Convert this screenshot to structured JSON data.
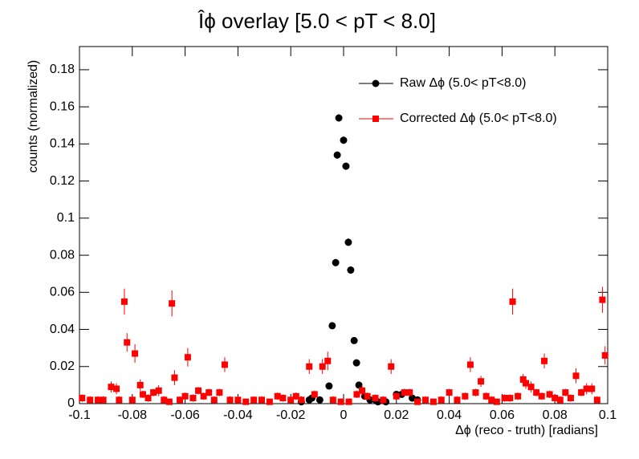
{
  "chart_data": {
    "type": "scatter",
    "title": "Îϕ overlay [5.0 < pT < 8.0]",
    "x_label": "Δϕ (reco - truth) [radians]",
    "y_label": "counts (normalized)",
    "xlim": [
      -0.1,
      0.1
    ],
    "ylim": [
      0,
      0.1925
    ],
    "xticks": [
      -0.1,
      -0.08,
      -0.06,
      -0.04,
      -0.02,
      0,
      0.02,
      0.04,
      0.06,
      0.08,
      0.1
    ],
    "yticks": [
      0,
      0.02,
      0.04,
      0.06,
      0.08,
      0.1,
      0.12,
      0.14,
      0.16,
      0.18
    ],
    "series": [
      {
        "name": "Raw Δϕ (5.0< pT<8.0)",
        "color": "#000000",
        "marker": "circle",
        "x": [
          -0.0018,
          -0.0024,
          0.0,
          0.0009,
          0.0018,
          -0.003,
          0.0027,
          -0.0043,
          0.004,
          0.0049,
          -0.0055,
          0.0058,
          -0.016,
          -0.013,
          -0.012,
          -0.009,
          0.008,
          0.01,
          0.012,
          0.013,
          0.016,
          0.02,
          0.022,
          0.026,
          0.028
        ],
        "values": [
          0.154,
          0.134,
          0.142,
          0.128,
          0.087,
          0.076,
          0.072,
          0.042,
          0.034,
          0.022,
          0.0095,
          0.01,
          0.001,
          0.002,
          0.003,
          0.002,
          0.004,
          0.002,
          0.002,
          0.001,
          0.001,
          0.005,
          0.005,
          0.003,
          0.002
        ],
        "errors": [
          0.002,
          0.002,
          0.002,
          0.002,
          0.002,
          0.002,
          0.002,
          0.001,
          0.001,
          0.001,
          0.001,
          0.001,
          0.0005,
          0.0005,
          0.0005,
          0.0005,
          0.0005,
          0.0005,
          0.0005,
          0.0005,
          0.0005,
          0.0005,
          0.0005,
          0.0005,
          0.0005
        ]
      },
      {
        "name": "Corrected  Δϕ (5.0< pT<8.0)",
        "color": "#ff0000",
        "marker": "square",
        "x": [
          -0.099,
          -0.096,
          -0.093,
          -0.091,
          -0.088,
          -0.086,
          -0.085,
          -0.083,
          -0.082,
          -0.08,
          -0.079,
          -0.077,
          -0.076,
          -0.074,
          -0.072,
          -0.07,
          -0.068,
          -0.066,
          -0.065,
          -0.064,
          -0.062,
          -0.06,
          -0.059,
          -0.057,
          -0.055,
          -0.053,
          -0.051,
          -0.049,
          -0.047,
          -0.045,
          -0.043,
          -0.04,
          -0.037,
          -0.034,
          -0.031,
          -0.028,
          -0.025,
          -0.023,
          -0.02,
          -0.018,
          -0.016,
          -0.013,
          -0.011,
          -0.008,
          -0.006,
          -0.004,
          -0.001,
          0.002,
          0.005,
          0.007,
          0.009,
          0.012,
          0.015,
          0.018,
          0.02,
          0.023,
          0.025,
          0.028,
          0.031,
          0.034,
          0.037,
          0.04,
          0.043,
          0.046,
          0.048,
          0.05,
          0.052,
          0.054,
          0.056,
          0.058,
          0.061,
          0.063,
          0.064,
          0.066,
          0.068,
          0.069,
          0.071,
          0.073,
          0.075,
          0.076,
          0.078,
          0.08,
          0.082,
          0.084,
          0.086,
          0.088,
          0.09,
          0.092,
          0.094,
          0.096,
          0.098,
          0.099
        ],
        "values": [
          0.003,
          0.002,
          0.002,
          0.002,
          0.009,
          0.008,
          0.002,
          0.055,
          0.033,
          0.002,
          0.027,
          0.01,
          0.005,
          0.003,
          0.006,
          0.007,
          0.002,
          0.001,
          0.054,
          0.014,
          0.002,
          0.004,
          0.025,
          0.003,
          0.007,
          0.004,
          0.006,
          0.002,
          0.006,
          0.021,
          0.002,
          0.002,
          0.001,
          0.002,
          0.002,
          0.001,
          0.004,
          0.003,
          0.002,
          0.004,
          0.002,
          0.02,
          0.005,
          0.02,
          0.023,
          0.002,
          0.001,
          0.001,
          0.005,
          0.007,
          0.004,
          0.003,
          0.002,
          0.02,
          0.004,
          0.006,
          0.006,
          0.001,
          0.002,
          0.001,
          0.002,
          0.006,
          0.002,
          0.004,
          0.021,
          0.006,
          0.012,
          0.004,
          0.002,
          0.001,
          0.003,
          0.003,
          0.055,
          0.004,
          0.013,
          0.011,
          0.009,
          0.006,
          0.004,
          0.023,
          0.005,
          0.003,
          0.002,
          0.006,
          0.003,
          0.015,
          0.006,
          0.008,
          0.008,
          0.002,
          0.056,
          0.026
        ],
        "errors": [
          0.002,
          0.002,
          0.002,
          0.002,
          0.003,
          0.003,
          0.002,
          0.007,
          0.005,
          0.002,
          0.005,
          0.003,
          0.002,
          0.002,
          0.002,
          0.003,
          0.002,
          0.001,
          0.007,
          0.004,
          0.002,
          0.002,
          0.005,
          0.002,
          0.002,
          0.002,
          0.002,
          0.002,
          0.002,
          0.004,
          0.002,
          0.002,
          0.001,
          0.002,
          0.002,
          0.001,
          0.002,
          0.002,
          0.002,
          0.002,
          0.002,
          0.004,
          0.002,
          0.004,
          0.005,
          0.002,
          0.001,
          0.001,
          0.002,
          0.003,
          0.002,
          0.002,
          0.002,
          0.004,
          0.002,
          0.002,
          0.002,
          0.001,
          0.002,
          0.001,
          0.002,
          0.002,
          0.002,
          0.002,
          0.004,
          0.002,
          0.003,
          0.002,
          0.002,
          0.001,
          0.002,
          0.002,
          0.007,
          0.002,
          0.003,
          0.003,
          0.003,
          0.002,
          0.002,
          0.004,
          0.002,
          0.002,
          0.002,
          0.002,
          0.002,
          0.004,
          0.002,
          0.003,
          0.003,
          0.002,
          0.007,
          0.005
        ]
      }
    ]
  }
}
